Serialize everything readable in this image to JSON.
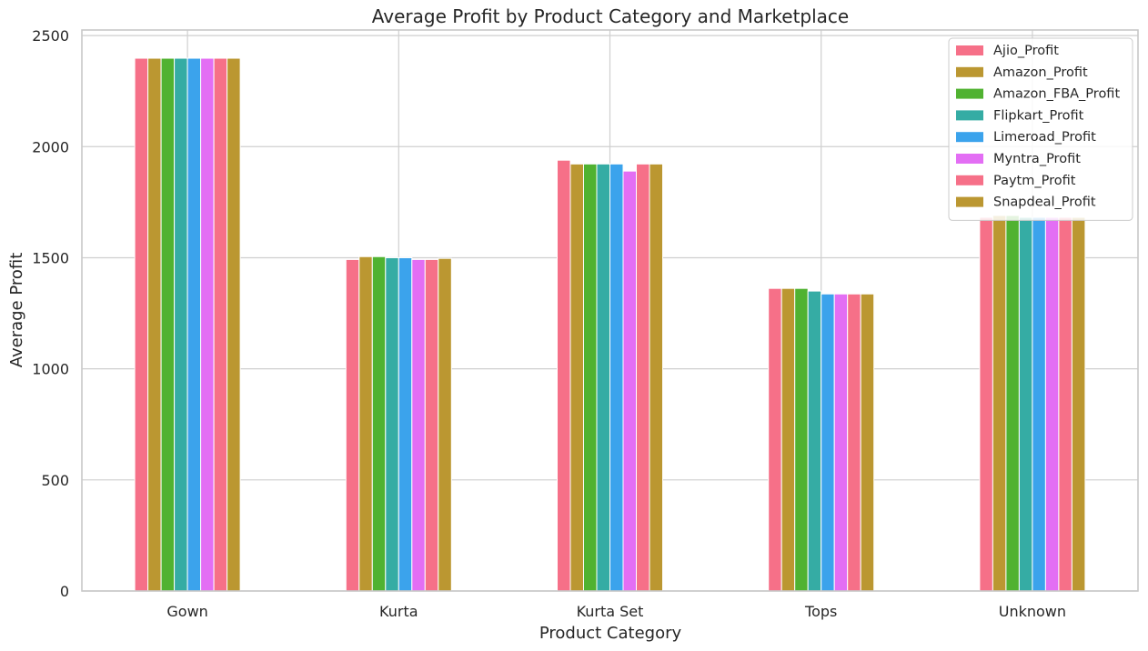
{
  "chart_data": {
    "type": "bar",
    "title": "Average Profit by Product Category and Marketplace",
    "xlabel": "Product Category",
    "ylabel": "Average Profit",
    "categories": [
      "Gown",
      "Kurta",
      "Kurta Set",
      "Tops",
      "Unknown"
    ],
    "ylim": [
      0,
      2525
    ],
    "yticks": [
      0,
      500,
      1000,
      1500,
      2000,
      2500
    ],
    "grid": true,
    "legend_position": "top-right",
    "series": [
      {
        "name": "Ajio_Profit",
        "color": "#f67088",
        "values": [
          2398,
          1492,
          1939,
          1362,
          1682
        ]
      },
      {
        "name": "Amazon_Profit",
        "color": "#bb9731",
        "values": [
          2398,
          1505,
          1922,
          1362,
          1690
        ]
      },
      {
        "name": "Amazon_FBA_Profit",
        "color": "#50b231",
        "values": [
          2398,
          1505,
          1922,
          1362,
          1690
        ]
      },
      {
        "name": "Flipkart_Profit",
        "color": "#35aca4",
        "values": [
          2398,
          1500,
          1922,
          1350,
          1682
        ]
      },
      {
        "name": "Limeroad_Profit",
        "color": "#3ba3ec",
        "values": [
          2398,
          1500,
          1922,
          1337,
          1682
        ]
      },
      {
        "name": "Myntra_Profit",
        "color": "#e36ef4",
        "values": [
          2398,
          1492,
          1890,
          1337,
          1682
        ]
      },
      {
        "name": "Paytm_Profit",
        "color": "#f67088",
        "values": [
          2398,
          1492,
          1922,
          1337,
          1682
        ]
      },
      {
        "name": "Snapdeal_Profit",
        "color": "#bb9731",
        "values": [
          2398,
          1497,
          1922,
          1337,
          1682
        ]
      }
    ]
  }
}
